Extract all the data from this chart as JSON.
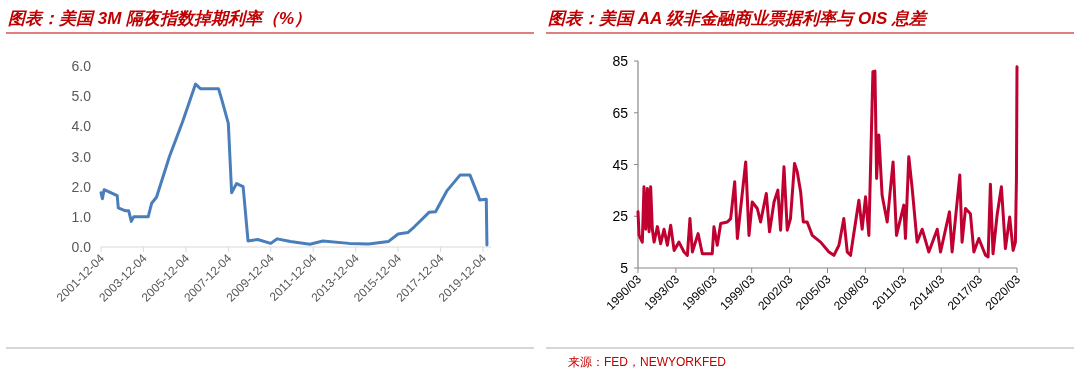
{
  "chart_data": [
    {
      "type": "line",
      "title": "图表：美国 3M 隔夜指数掉期利率（%）",
      "x": [
        "2001-12-04",
        "2001-12-28",
        "2002-01-26",
        "2002-05-19",
        "2002-09-09",
        "2002-09-27",
        "2003-01-30",
        "2003-03-26",
        "2003-05-09",
        "2003-06-18",
        "2004-02-24",
        "2004-04-23",
        "2004-07-16",
        "2005-02-24",
        "2005-10-08",
        "2006-05-19",
        "2006-08-11",
        "2007-06-18",
        "2007-08-11",
        "2007-12-04",
        "2008-01-30",
        "2008-04-23",
        "2008-08-15",
        "2008-11-07",
        "2009-04-23",
        "2009-12-04",
        "2010-03-26",
        "2010-11-07",
        "2011-10-08",
        "2012-05-19",
        "2013-08-11",
        "2014-07-16",
        "2015-06-18",
        "2015-12-04",
        "2016-05-19",
        "2016-09-09",
        "2017-05-19",
        "2017-09-09",
        "2018-03-26",
        "2018-11-07",
        "2019-04-23",
        "2019-09-09",
        "2019-10-08",
        "2020-01-30",
        "2020-02-10"
      ],
      "series": [
        {
          "color": "#4a7ebb",
          "values": [
            1.8,
            1.6,
            1.9,
            1.8,
            1.7,
            1.3,
            1.2,
            1.2,
            0.85,
            1.0,
            1.0,
            1.45,
            1.65,
            3.0,
            4.15,
            5.4,
            5.25,
            5.25,
            4.9,
            4.1,
            1.8,
            2.1,
            2.0,
            0.2,
            0.25,
            0.12,
            0.27,
            0.18,
            0.09,
            0.2,
            0.12,
            0.1,
            0.18,
            0.43,
            0.48,
            0.67,
            1.15,
            1.17,
            1.87,
            2.39,
            2.39,
            1.72,
            1.56,
            1.58,
            0.07
          ]
        }
      ],
      "xlim": [
        "2001-12-04",
        "2020-04-20"
      ],
      "xticks": [
        "2001-12-04",
        "2003-12-04",
        "2005-12-04",
        "2007-12-04",
        "2009-12-04",
        "2011-12-04",
        "2013-12-04",
        "2015-12-04",
        "2017-12-04",
        "2019-12-04"
      ],
      "ylim": [
        0,
        6
      ],
      "yticks": [
        {
          "value": 0,
          "label": "0.0"
        },
        {
          "value": 1,
          "label": "1.0"
        },
        {
          "value": 2,
          "label": "2.0"
        },
        {
          "value": 3,
          "label": "3.0"
        },
        {
          "value": 4,
          "label": "4.0"
        },
        {
          "value": 5,
          "label": "5.0"
        },
        {
          "value": 6,
          "label": "6.0"
        }
      ],
      "grid": false
    },
    {
      "type": "line",
      "title": "图表：美国 AA 级非金融商业票据利率与 OIS 息差",
      "x": [
        "1990-03-01",
        "1990-04-01",
        "1990-07-04",
        "1990-08-21",
        "1990-10-11",
        "1990-11-28",
        "1991-01-15",
        "1991-03-02",
        "1991-04-19",
        "1991-06-09",
        "1991-09-13",
        "1991-12-16",
        "1992-03-24",
        "1992-06-27",
        "1992-10-01",
        "1993-01-08",
        "1993-05-28",
        "1993-10-22",
        "1994-01-26",
        "1994-04-11",
        "1994-06-20",
        "1994-12-02",
        "1995-04-04",
        "1996-01-15",
        "1996-03-05",
        "1996-06-09",
        "1996-09-16",
        "1997-03-27",
        "1997-07-01",
        "1997-10-26",
        "1998-01-11",
        "1998-09-09",
        "1998-12-13",
        "1999-03-16",
        "1999-08-10",
        "1999-11-14",
        "2000-04-26",
        "2000-07-29",
        "2000-12-06",
        "2001-03-27",
        "2001-06-13",
        "2001-09-20",
        "2001-12-24",
        "2002-03-27",
        "2002-07-22",
        "2002-10-08",
        "2003-01-15",
        "2003-04-01",
        "2003-07-22",
        "2003-12-16",
        "2004-08-14",
        "2005-04-11",
        "2005-09-02",
        "2006-01-26",
        "2006-06-16",
        "2006-09-23",
        "2006-12-27",
        "2007-08-25",
        "2007-11-28",
        "2008-03-05",
        "2008-06-09",
        "2008-10-04",
        "2008-12-02",
        "2009-01-19",
        "2009-03-24",
        "2009-06-27",
        "2009-11-21",
        "2010-05-10",
        "2010-08-17",
        "2011-03-16",
        "2011-05-03",
        "2011-08-07",
        "2011-11-14",
        "2012-04-04",
        "2012-08-28",
        "2013-03-09",
        "2013-11-07",
        "2014-02-10",
        "2014-10-26",
        "2015-01-11",
        "2015-08-21",
        "2015-10-26",
        "2016-02-03",
        "2016-06-23",
        "2016-10-01",
        "2017-02-21",
        "2017-09-02",
        "2017-11-17",
        "2018-01-22",
        "2018-04-08",
        "2018-08-03",
        "2018-12-06",
        "2019-04-01",
        "2019-08-03",
        "2019-11-10",
        "2020-01-15",
        "2020-02-14",
        "2020-03-01"
      ],
      "series": [
        {
          "color": "#c00030",
          "values": [
            26.7,
            17.6,
            15,
            36.4,
            20,
            35.7,
            19,
            36.4,
            20,
            15,
            21,
            14.4,
            20,
            13.8,
            21.5,
            11.8,
            15,
            11.2,
            9.9,
            24.1,
            11.2,
            18.3,
            10.5,
            10.5,
            20.9,
            13.8,
            22.2,
            22.8,
            24.1,
            38.3,
            16.4,
            46,
            17.6,
            30.5,
            28,
            22.8,
            33.8,
            19,
            30.5,
            35.1,
            19.6,
            44.1,
            19.6,
            24.1,
            45.4,
            42.2,
            34.4,
            22.8,
            22.8,
            17.6,
            15,
            11.2,
            9.9,
            13.8,
            24.1,
            11.2,
            9.9,
            31.2,
            20,
            32.5,
            17.6,
            80.9,
            81.1,
            39.6,
            56.4,
            33.1,
            22.8,
            46,
            17.6,
            29.3,
            16.4,
            48,
            35.7,
            15,
            20,
            11.2,
            20,
            11.2,
            26.7,
            11.2,
            40.9,
            15,
            28,
            26,
            11.2,
            16.4,
            9.9,
            9.3,
            37.4,
            10.5,
            25.4,
            36.4,
            12.5,
            24.7,
            11.8,
            15,
            39.6,
            82.8
          ]
        }
      ],
      "xlim": [
        "1990-03",
        "2020-03"
      ],
      "xticks": [
        {
          "value": "1990-03",
          "label": "1990/03"
        },
        {
          "value": "1993-03",
          "label": "1993/03"
        },
        {
          "value": "1996-03",
          "label": "1996/03"
        },
        {
          "value": "1999-03",
          "label": "1999/03"
        },
        {
          "value": "2002-03",
          "label": "2002/03"
        },
        {
          "value": "2005-03",
          "label": "2005/03"
        },
        {
          "value": "2008-03",
          "label": "2008/03"
        },
        {
          "value": "2011-03",
          "label": "2011/03"
        },
        {
          "value": "2014-03",
          "label": "2014/03"
        },
        {
          "value": "2017-03",
          "label": "2017/03"
        },
        {
          "value": "2020-03",
          "label": "2020/03"
        }
      ],
      "ylim": [
        5,
        85
      ],
      "yticks": [
        5,
        25,
        45,
        65,
        85
      ],
      "grid": false,
      "annotations": [
        "来源：FED，NEWYORKFED"
      ]
    }
  ]
}
